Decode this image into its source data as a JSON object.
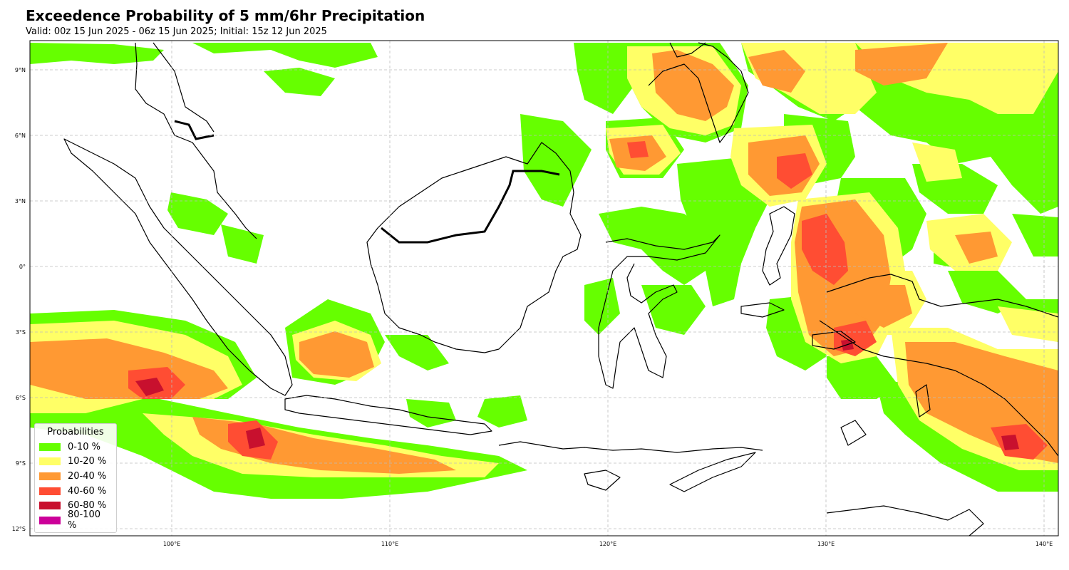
{
  "title": "Exceedence Probability of 5 mm/6hr Precipitation",
  "subtitle": "Valid: 00z 15 Jun 2025 - 06z 15 Jun 2025; Initial: 15z 12 Jun 2025",
  "map": {
    "lon_range": [
      93.5,
      140.7
    ],
    "lat_range": [
      -12.5,
      10.2
    ],
    "lon_ticks": [
      "100°E",
      "110°E",
      "120°E",
      "130°E",
      "140°E"
    ],
    "lat_ticks": [
      "9°N",
      "6°N",
      "3°N",
      "0°",
      "3°S",
      "6°S",
      "9°S",
      "12°S"
    ],
    "grid": true
  },
  "legend": {
    "title": "Probabilities",
    "items": [
      {
        "label": "0-10 %",
        "color": "#66ff00"
      },
      {
        "label": "10-20 %",
        "color": "#ffff66"
      },
      {
        "label": "20-40 %",
        "color": "#ff9933"
      },
      {
        "label": "40-60 %",
        "color": "#ff4d33"
      },
      {
        "label": "60-80 %",
        "color": "#c8102e"
      },
      {
        "label": "80-100 %",
        "color": "#cc0099"
      }
    ]
  }
}
